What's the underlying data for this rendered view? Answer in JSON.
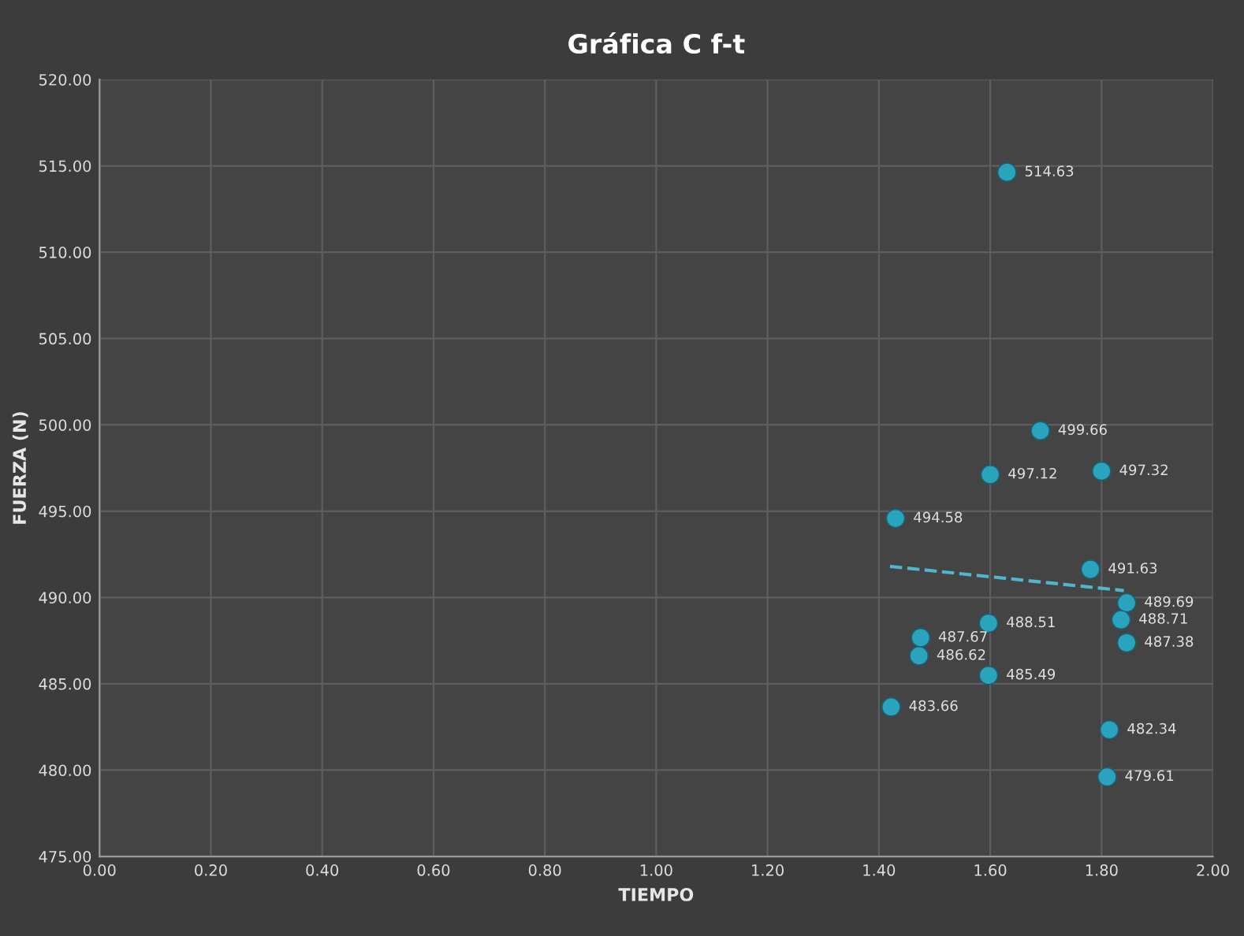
{
  "chart_data": {
    "type": "scatter",
    "title": "Gráfica C f-t",
    "xlabel": "TIEMPO",
    "ylabel": "FUERZA (N)",
    "xlim": [
      0,
      2
    ],
    "xticks": [
      {
        "value": 0,
        "label": "0.00"
      },
      {
        "value": 0.2,
        "label": "0.20"
      },
      {
        "value": 0.4,
        "label": "0.40"
      },
      {
        "value": 0.6,
        "label": "0.60"
      },
      {
        "value": 0.8,
        "label": "0.80"
      },
      {
        "value": 1,
        "label": "1.00"
      },
      {
        "value": 1.2,
        "label": "1.20"
      },
      {
        "value": 1.4,
        "label": "1.40"
      },
      {
        "value": 1.6,
        "label": "1.60"
      },
      {
        "value": 1.8,
        "label": "1.80"
      },
      {
        "value": 2,
        "label": "2.00"
      }
    ],
    "ylim": [
      475,
      520
    ],
    "yticks": [
      {
        "value": 475,
        "label": "475.00"
      },
      {
        "value": 480,
        "label": "480.00"
      },
      {
        "value": 485,
        "label": "485.00"
      },
      {
        "value": 490,
        "label": "490.00"
      },
      {
        "value": 495,
        "label": "495.00"
      },
      {
        "value": 500,
        "label": "500.00"
      },
      {
        "value": 505,
        "label": "505.00"
      },
      {
        "value": 510,
        "label": "510.00"
      },
      {
        "value": 515,
        "label": "515.00"
      },
      {
        "value": 520,
        "label": "520.00"
      }
    ],
    "grid": true,
    "series": [
      {
        "color": "#2aa3bd",
        "marker": "circle",
        "x": [
          1.63,
          1.69,
          1.6,
          1.8,
          1.43,
          1.78,
          1.845,
          1.835,
          1.845,
          1.597,
          1.475,
          1.472,
          1.597,
          1.422,
          1.814,
          1.81
        ],
        "values": [
          514.63,
          499.66,
          497.12,
          497.32,
          494.58,
          491.63,
          489.69,
          488.71,
          487.38,
          488.51,
          487.67,
          486.62,
          485.49,
          483.66,
          482.34,
          479.61
        ],
        "value_labels": [
          "514.63",
          "499.66",
          "497.12",
          "497.32",
          "494.58",
          "491.63",
          "489.69",
          "488.71",
          "487.38",
          "488.51",
          "487.67",
          "486.62",
          "485.49",
          "483.66",
          "482.34",
          "479.61"
        ]
      },
      {
        "type": "line",
        "color": "#4fb6cc",
        "line_style": "dashed",
        "marker": "none",
        "x": [
          1.42,
          1.84
        ],
        "values": [
          491.8,
          490.4
        ]
      }
    ]
  }
}
